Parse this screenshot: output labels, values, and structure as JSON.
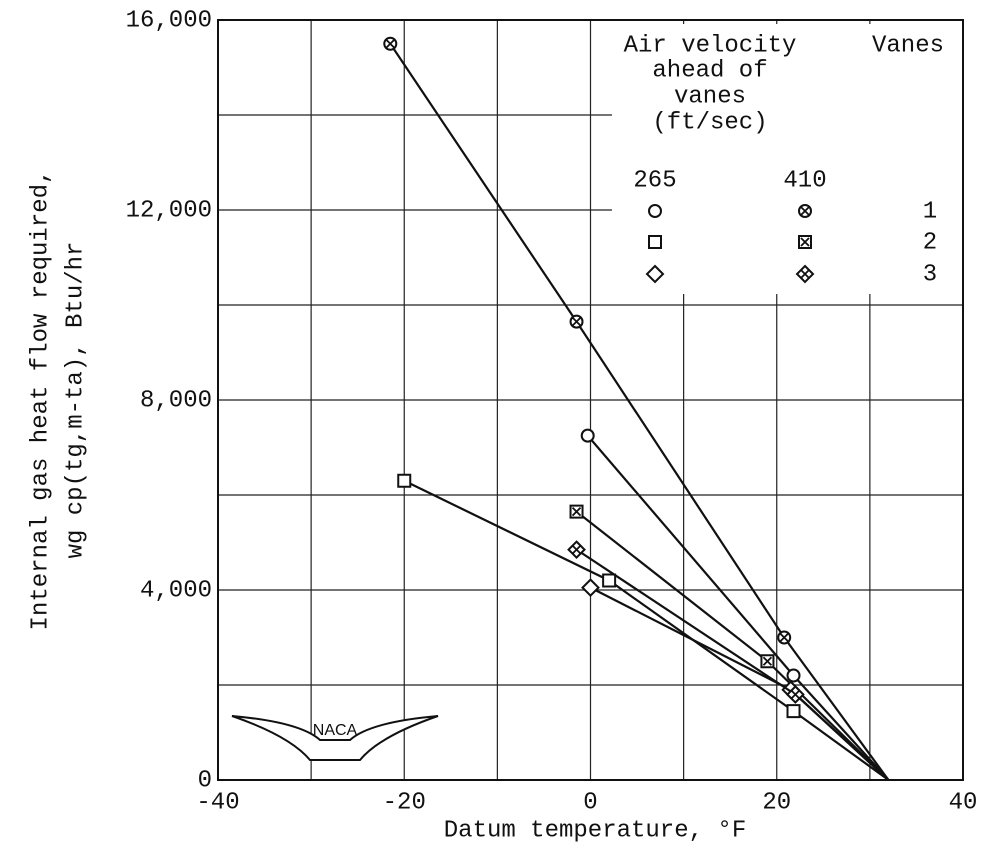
{
  "chart_data": {
    "type": "scatter",
    "x_label": "Datum temperature, °F",
    "y_label_lines": [
      "Internal gas heat flow required,",
      "wg cp(tg,m-ta), Btu/hr"
    ],
    "xlim": [
      -40,
      40
    ],
    "xticks": [
      -40,
      -20,
      0,
      20,
      40
    ],
    "x_minor_grid": [
      -30,
      -10,
      10,
      30
    ],
    "ylim": [
      0,
      16000
    ],
    "yticks": [
      {
        "value": 0,
        "label": "0"
      },
      {
        "value": 4000,
        "label": "4,000"
      },
      {
        "value": 8000,
        "label": "8,000"
      },
      {
        "value": 12000,
        "label": "12,000"
      },
      {
        "value": 16000,
        "label": "16,000"
      }
    ],
    "y_minor_grid": [
      2000,
      6000,
      10000,
      14000
    ],
    "grid": true,
    "convergence": {
      "x": 32,
      "y": 0
    },
    "color": "#111111",
    "series": [
      {
        "marker": "circle",
        "x": [
          -0.3,
          21.8
        ],
        "values": [
          7250,
          2200
        ]
      },
      {
        "marker": "circle-x",
        "x": [
          -21.5,
          -1.5,
          20.8
        ],
        "values": [
          15500,
          9650,
          3000
        ]
      },
      {
        "marker": "square",
        "x": [
          -20,
          2,
          21.8
        ],
        "values": [
          6300,
          4200,
          1450
        ]
      },
      {
        "marker": "square-x",
        "x": [
          -1.5,
          19
        ],
        "values": [
          5650,
          2500
        ]
      },
      {
        "marker": "diamond",
        "x": [
          0,
          21.5
        ],
        "values": [
          4050,
          1900
        ]
      },
      {
        "marker": "diamond-x",
        "x": [
          -1.5,
          22
        ],
        "values": [
          4850,
          1800
        ]
      }
    ],
    "legend": {
      "heading_lines": [
        "Air velocity",
        "ahead of",
        "vanes",
        "(ft/sec)"
      ],
      "vanes_header": "Vanes",
      "columns": [
        "265",
        "410"
      ],
      "rows": [
        "1",
        "2",
        "3"
      ]
    },
    "logo_text": "NACA"
  }
}
